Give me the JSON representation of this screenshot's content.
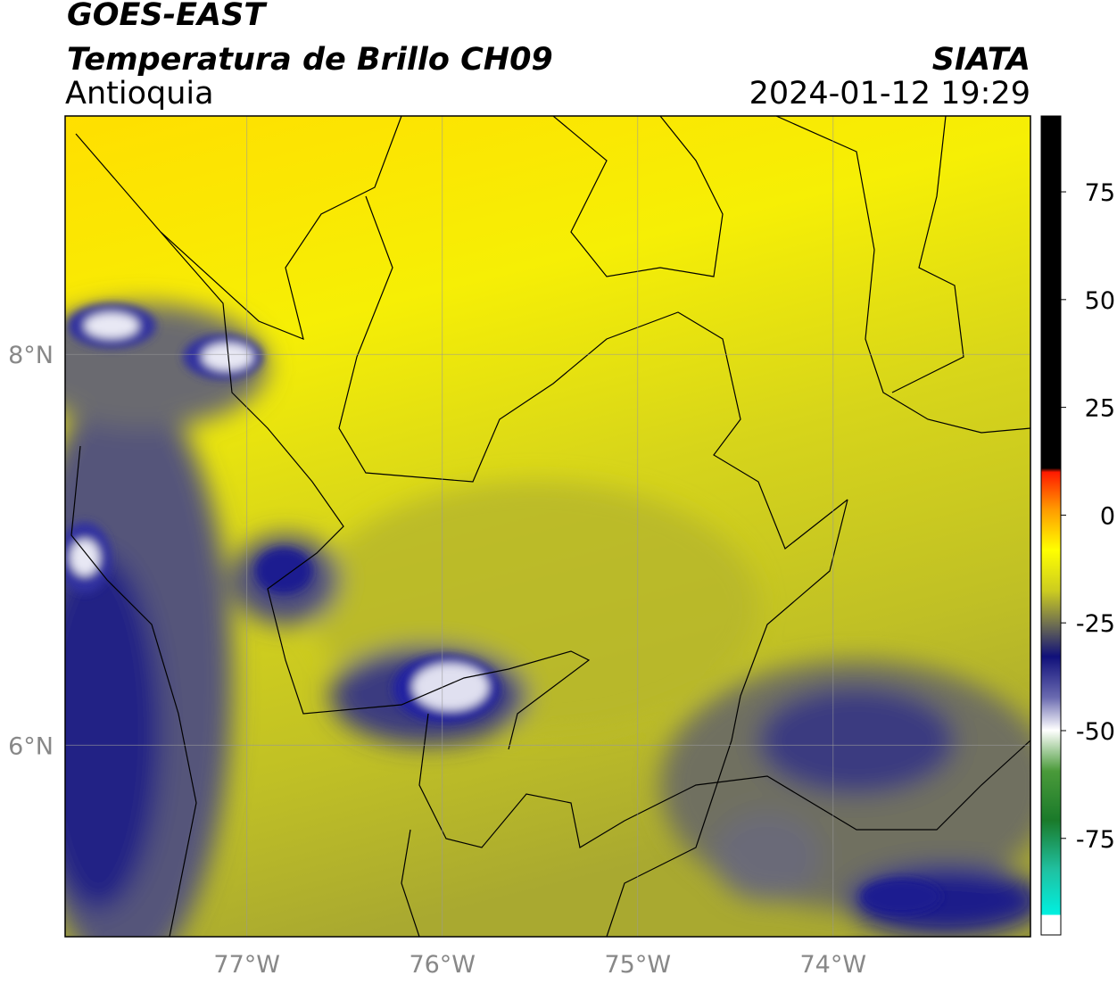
{
  "header": {
    "title": "GOES-EAST",
    "subtitle": "Temperatura de Brillo CH09",
    "region": "Antioquia",
    "source": "SIATA",
    "datetime": "2024-01-12 19:29"
  },
  "map": {
    "lonlim": [
      -77.93,
      -72.99
    ],
    "latlim": [
      5.02,
      9.22
    ],
    "lon_ticks": [
      {
        "value": -77,
        "label": "77°W"
      },
      {
        "value": -76,
        "label": "76°W"
      },
      {
        "value": -75,
        "label": "75°W"
      },
      {
        "value": -74,
        "label": "74°W"
      }
    ],
    "lat_ticks": [
      {
        "value": 8,
        "label": "8°N"
      },
      {
        "value": 6,
        "label": "6°N"
      }
    ],
    "grid": true
  },
  "colorbar": {
    "clim": [
      -97.4,
      92.6
    ],
    "ticks": [
      75,
      50,
      25,
      0,
      -25,
      -50,
      -75
    ]
  }
}
